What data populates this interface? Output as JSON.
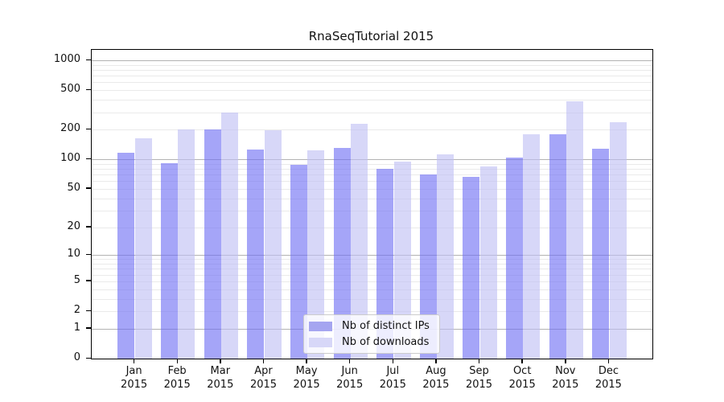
{
  "chart_data": {
    "type": "bar",
    "title": "RnaSeqTutorial 2015",
    "xlabel": "",
    "ylabel": "",
    "y_scale": "log10(1+y)",
    "ylim": [
      0,
      1275
    ],
    "y_ticks": [
      0,
      1,
      2,
      5,
      10,
      20,
      50,
      100,
      200,
      500,
      1000
    ],
    "grid": "horizontal major (powers of 10, gray) + minor (light gray)",
    "legend_position": "bottom-center-inside",
    "categories": [
      "Jan",
      "Feb",
      "Mar",
      "Apr",
      "May",
      "Jun",
      "Jul",
      "Aug",
      "Sep",
      "Oct",
      "Nov",
      "Dec"
    ],
    "year": "2015",
    "series": [
      {
        "name": "Nb of distinct IPs",
        "color": "#6e6ef3",
        "legend_color": "#a5a5f0",
        "opacity": 0.62,
        "values": [
          117,
          92,
          200,
          126,
          88,
          130,
          80,
          70,
          66,
          104,
          180,
          128
        ]
      },
      {
        "name": "Nb of downloads",
        "color": "#bebef3",
        "legend_color": "#d7d7f8",
        "opacity": 0.62,
        "values": [
          163,
          200,
          300,
          197,
          124,
          228,
          95,
          112,
          85,
          180,
          385,
          237
        ]
      }
    ],
    "colors": {
      "major_grid": "#b3b3b3",
      "minor_grid": "#eaeaea",
      "axis": "#000000",
      "background": "#ffffff"
    }
  }
}
